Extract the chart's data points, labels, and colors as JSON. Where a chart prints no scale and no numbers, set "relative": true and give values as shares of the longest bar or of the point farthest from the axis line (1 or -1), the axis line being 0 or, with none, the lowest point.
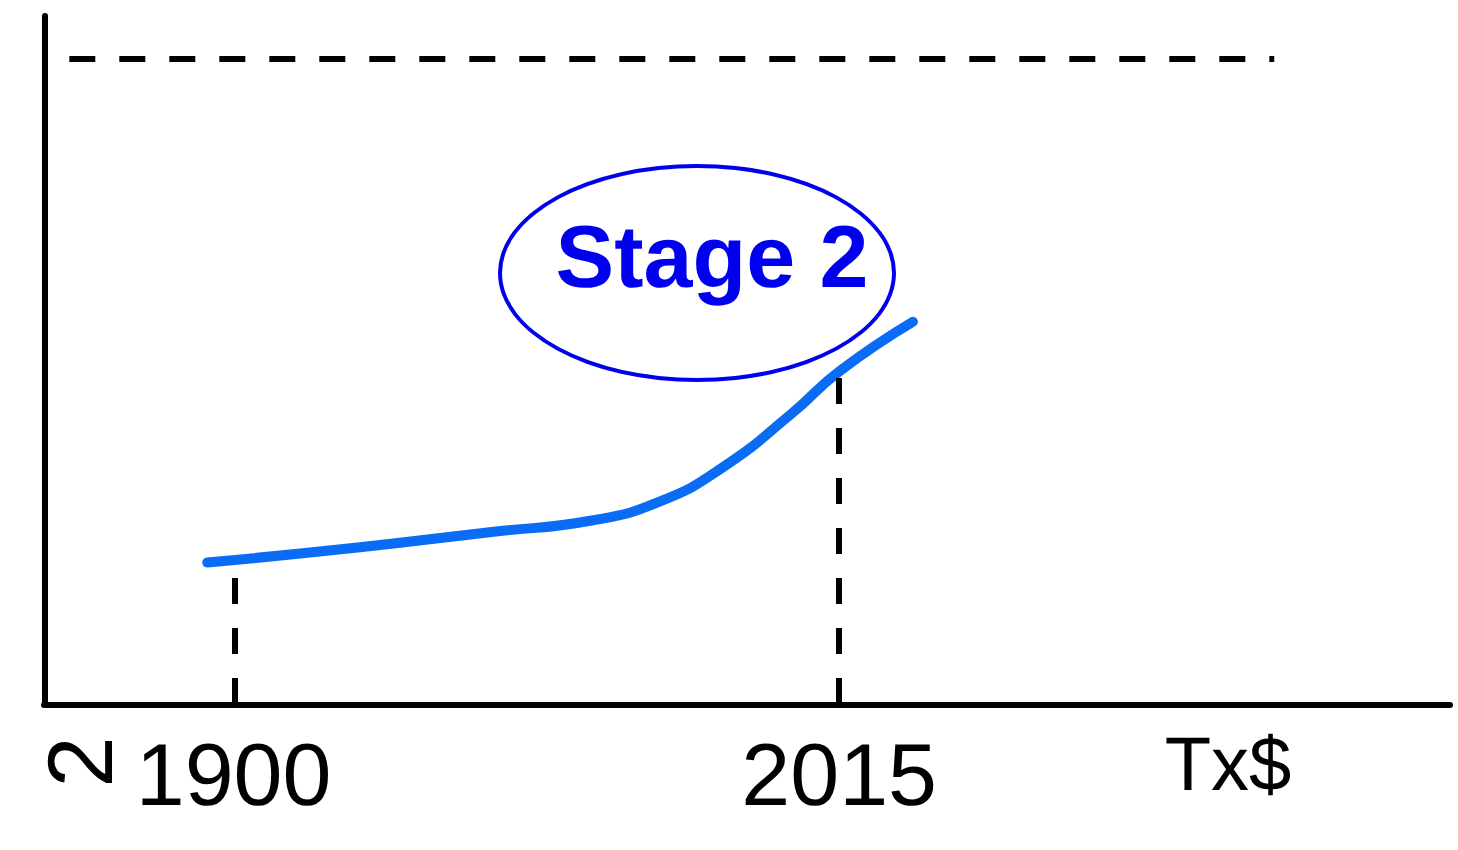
{
  "chart_data": {
    "type": "line",
    "xlabel": "Tx$",
    "ylabel": "2",
    "annotations": [
      "Stage 2"
    ],
    "x": [
      1895,
      1924,
      1949,
      1968,
      1981,
      1993,
      2006,
      2015,
      2029
    ],
    "series": [
      {
        "color": "#0a6cf5",
        "values": [
          0.37,
          0.41,
          0.45,
          0.48,
          0.53,
          0.62,
          0.76,
          0.87,
          1
        ]
      }
    ],
    "relative": true,
    "xlim": [
      1864,
      2131
    ],
    "xticks": [
      1900,
      2015
    ],
    "ref_lines": [
      {
        "axis": "y",
        "value": 1.69,
        "color": "#000000",
        "line_style": "dashed"
      },
      {
        "axis": "x",
        "value": 1900,
        "color": "#000000",
        "line_style": "dashed"
      },
      {
        "axis": "x",
        "value": 2015,
        "color": "#000000",
        "line_style": "dashed"
      }
    ]
  }
}
